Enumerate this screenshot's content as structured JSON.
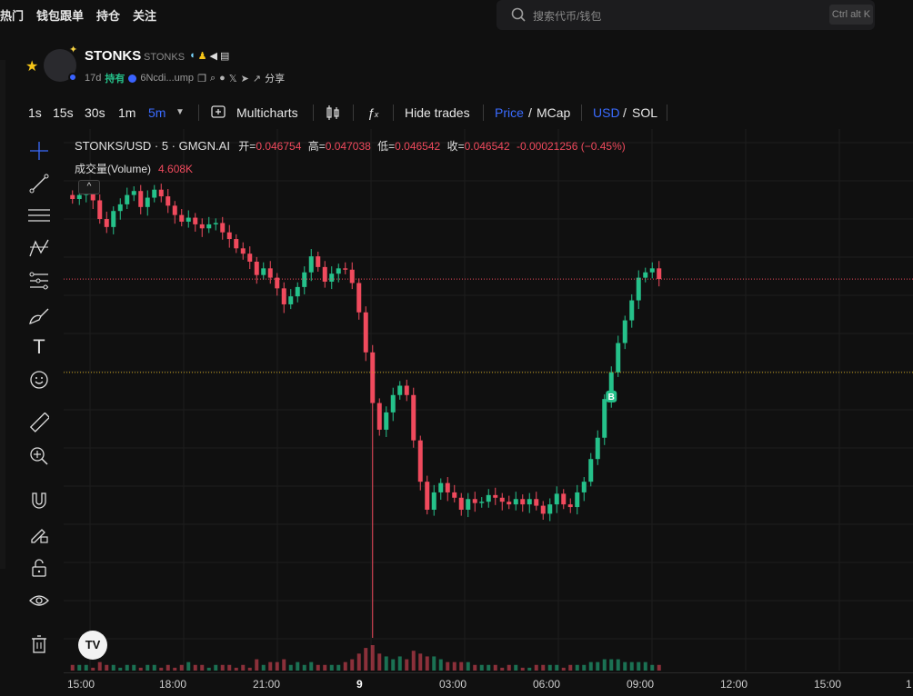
{
  "nav": {
    "items": [
      "热门",
      "钱包跟单",
      "持仓",
      "关注"
    ]
  },
  "search": {
    "placeholder": "搜索代币/钱包",
    "shortcut": "Ctrl alt K"
  },
  "token": {
    "name": "STONKS",
    "symbol": "STONKS",
    "age": "17d",
    "holding_label": "持有",
    "address": "6Ncdi...ump",
    "share_label": "分享",
    "icons": [
      "star-icon",
      "sparkle-icon",
      "pill-icon",
      "people-icon",
      "megaphone-icon",
      "doc-icon",
      "copy-icon",
      "search-icon",
      "pump-icon",
      "x-icon",
      "telegram-icon",
      "external-link-icon"
    ]
  },
  "toolbar": {
    "timeframes": [
      "1s",
      "15s",
      "30s",
      "1m",
      "5m"
    ],
    "active_timeframe": "5m",
    "multicharts": "Multicharts",
    "hide_trades": "Hide trades",
    "price": "Price",
    "mcap": "MCap",
    "usd": "USD",
    "sol": "SOL",
    "slash": "/"
  },
  "legend": {
    "pair": "STONKS/USD · 5 · GMGN.AI",
    "open_label": "开=",
    "open": "0.046754",
    "high_label": "高=",
    "high": "0.047038",
    "low_label": "低=",
    "low": "0.046542",
    "close_label": "收=",
    "close": "0.046542",
    "change": "-0.00021256 (−0.45%)",
    "volume_label": "成交量(Volume)",
    "volume": "4.608K"
  },
  "xaxis": {
    "ticks": [
      "15:00",
      "18:00",
      "21:00",
      "9",
      "03:00",
      "06:00",
      "09:00",
      "12:00",
      "15:00",
      "1"
    ]
  },
  "trade_marker": "B",
  "logo_text": "TV",
  "collapse_glyph": "^",
  "colors": {
    "up": "#25c18a",
    "down": "#f04a5d",
    "accent": "#3a6bff",
    "bg": "#101010"
  },
  "chart_data": {
    "type": "candlestick",
    "interval": "5m",
    "x_ticks": [
      "15:00",
      "18:00",
      "21:00",
      "9",
      "03:00",
      "06:00",
      "09:00",
      "12:00",
      "15:00"
    ],
    "last_close": 0.046542,
    "series": [
      {
        "name": "",
        "close": [
          0.0525,
          0.0528,
          0.0531,
          0.0524,
          0.051,
          0.0504,
          0.0516,
          0.0521,
          0.0528,
          0.0531,
          0.0519,
          0.0526,
          0.0532,
          0.0527,
          0.052,
          0.0513,
          0.0508,
          0.0511,
          0.0506,
          0.0503,
          0.0506,
          0.0507,
          0.05,
          0.0495,
          0.0488,
          0.0484,
          0.0478,
          0.0468,
          0.0473,
          0.0466,
          0.0458,
          0.0446,
          0.0452,
          0.0459,
          0.047,
          0.0482,
          0.0474,
          0.0463,
          0.0469,
          0.0473,
          0.0472,
          0.0462,
          0.044,
          0.041,
          0.0372,
          0.0352,
          0.0365,
          0.0378,
          0.0385,
          0.0378,
          0.0344,
          0.0313,
          0.0292,
          0.0305,
          0.0312,
          0.0305,
          0.0301,
          0.0292,
          0.03,
          0.0297,
          0.0298,
          0.0303,
          0.0301,
          0.0298,
          0.0296,
          0.03,
          0.0296,
          0.03,
          0.0295,
          0.0289,
          0.0296,
          0.0304,
          0.0296,
          0.0294,
          0.0305,
          0.0313,
          0.033,
          0.0346,
          0.0375,
          0.0395,
          0.0417,
          0.0434,
          0.0449,
          0.0466,
          0.047,
          0.0473,
          0.0465
        ]
      }
    ],
    "volume": [
      2,
      2,
      2,
      1,
      3,
      2,
      2,
      1,
      2,
      2,
      1,
      2,
      2,
      1,
      2,
      1,
      2,
      3,
      2,
      2,
      1,
      2,
      2,
      2,
      1,
      2,
      1,
      4,
      2,
      3,
      3,
      4,
      2,
      3,
      2,
      3,
      2,
      2,
      2,
      2,
      3,
      4,
      6,
      8,
      9,
      6,
      5,
      4,
      5,
      4,
      7,
      6,
      5,
      5,
      4,
      3,
      3,
      3,
      3,
      2,
      2,
      2,
      2,
      1,
      2,
      2,
      1,
      1,
      2,
      2,
      2,
      2,
      1,
      2,
      2,
      2,
      3,
      3,
      4,
      4,
      4,
      3,
      3,
      3,
      3,
      2,
      2
    ]
  }
}
